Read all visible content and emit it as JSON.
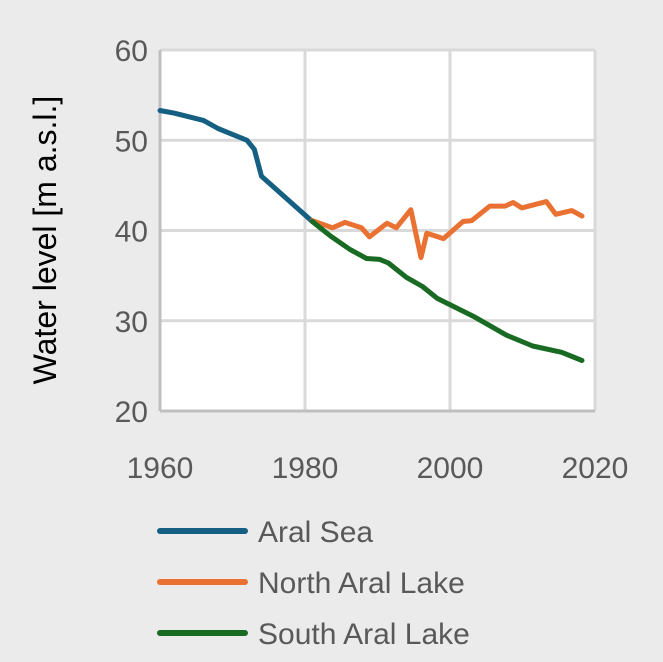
{
  "chart_data": {
    "type": "line",
    "title": "",
    "xlabel": "",
    "ylabel": "Water level [m a.s.l.]",
    "xlim": [
      1960,
      2020
    ],
    "ylim": [
      20,
      60
    ],
    "xticks": [
      "1960",
      "1980",
      "2000",
      "2020"
    ],
    "yticks": [
      "20",
      "30",
      "40",
      "50",
      "60"
    ],
    "grid": true,
    "legend_position": "bottom",
    "series": [
      {
        "name": "Aral Sea",
        "color": "#155f82",
        "x": [
          1960,
          1962,
          1966,
          1968,
          1972,
          1973,
          1974,
          1981
        ],
        "y": [
          53.3,
          53.0,
          52.2,
          51.3,
          50.0,
          49.0,
          46.0,
          41.0
        ]
      },
      {
        "name": "North Aral Lake",
        "color": "#e97132",
        "x": [
          1981,
          1983.8,
          1985.5,
          1987.8,
          1988.9,
          1991.3,
          1992.6,
          1994.6,
          1996,
          1996.8,
          1999.1,
          2001.8,
          2003,
          2005.5,
          2007.6,
          2008.7,
          2009.9,
          2013.3,
          2014.6,
          2016.8,
          2018.2
        ],
        "y": [
          41.1,
          40.3,
          40.9,
          40.3,
          39.3,
          40.8,
          40.3,
          42.3,
          37.0,
          39.7,
          39.1,
          41.0,
          41.1,
          42.7,
          42.7,
          43.1,
          42.5,
          43.2,
          41.8,
          42.2,
          41.6
        ]
      },
      {
        "name": "South Aral Lake",
        "color": "#196b24",
        "x": [
          1981,
          1983.5,
          1986.2,
          1988.5,
          1990.3,
          1991.5,
          1994,
          1996.2,
          1998.2,
          2003.2,
          2007.8,
          2011.4,
          2015.4,
          2018.2
        ],
        "y": [
          41.0,
          39.4,
          37.9,
          36.9,
          36.8,
          36.4,
          34.8,
          33.8,
          32.5,
          30.5,
          28.4,
          27.2,
          26.5,
          25.6
        ]
      }
    ]
  }
}
